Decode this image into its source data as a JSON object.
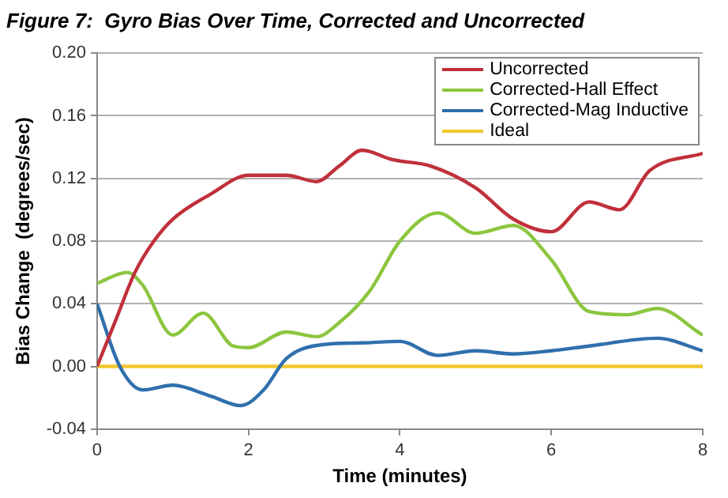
{
  "chart_data": {
    "type": "line",
    "title": "Figure 7:  Gyro Bias Over Time, Corrected and Uncorrected",
    "xlabel": "Time (minutes)",
    "ylabel": "Bias Change  (degrees/sec)",
    "xlim": [
      0,
      8
    ],
    "xticks": [
      0,
      2,
      4,
      6,
      8
    ],
    "ylim": [
      -0.04,
      0.2
    ],
    "yticks": [
      -0.04,
      {
        "value": 0,
        "label": "0.00"
      },
      0.04,
      0.08,
      0.12,
      0.16,
      {
        "value": 0.2,
        "label": "0.20"
      }
    ],
    "grid": "y",
    "legend": "top right",
    "marker": "none",
    "line_style": "solid",
    "series": [
      {
        "name": "Uncorrected",
        "color": "#c0303a",
        "x": [
          0,
          0.25,
          0.5,
          0.75,
          1,
          1.5,
          2,
          2.5,
          2.9,
          3.2,
          3.5,
          3.9,
          4.4,
          5,
          5.5,
          6,
          6.5,
          6.9,
          7.3,
          8
        ],
        "values": [
          0,
          0.03,
          0.06,
          0.08,
          0.094,
          0.11,
          0.122,
          0.122,
          0.118,
          0.128,
          0.138,
          0.132,
          0.128,
          0.114,
          0.094,
          0.086,
          0.105,
          0.1,
          0.125,
          0.136
        ]
      },
      {
        "name": "Corrected-Hall Effect",
        "color": "#8cc63f",
        "x": [
          0,
          0.4,
          0.6,
          1,
          1.4,
          1.8,
          2,
          2.5,
          2.9,
          3.2,
          3.6,
          4,
          4.5,
          5,
          5.5,
          6,
          6.5,
          7,
          7.4,
          8
        ],
        "values": [
          0.053,
          0.06,
          0.052,
          0.02,
          0.034,
          0.013,
          0.012,
          0.022,
          0.019,
          0.028,
          0.048,
          0.08,
          0.098,
          0.085,
          0.09,
          0.068,
          0.035,
          0.033,
          0.037,
          0.02
        ]
      },
      {
        "name": "Corrected-Mag Inductive",
        "color": "#2f6fad",
        "x": [
          0,
          0.3,
          0.6,
          1,
          1.5,
          1.9,
          2.2,
          2.5,
          3,
          3.5,
          4,
          4.5,
          5,
          5.5,
          6,
          6.5,
          7.4,
          8
        ],
        "values": [
          0.04,
          0,
          -0.015,
          -0.012,
          -0.019,
          -0.025,
          -0.015,
          0.005,
          0.014,
          0.015,
          0.016,
          0.007,
          0.01,
          0.008,
          0.01,
          0.013,
          0.018,
          0.01
        ]
      },
      {
        "name": "Ideal",
        "color": "#f2c72e",
        "x": [
          0,
          8
        ],
        "values": [
          0,
          0
        ]
      }
    ]
  }
}
